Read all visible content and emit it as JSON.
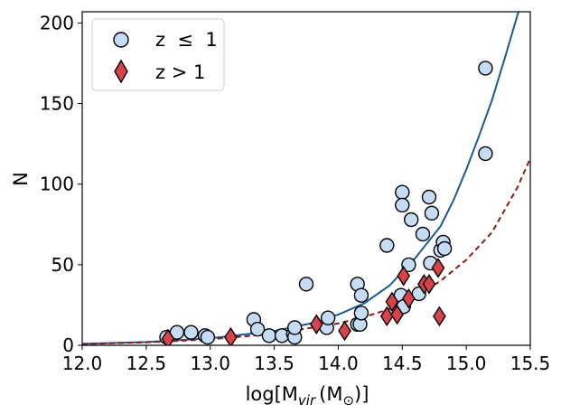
{
  "chart_data": {
    "type": "scatter",
    "xlabel": "log[M",
    "xlabel_sub": "vir",
    "xlabel_unit_open": "(M",
    "xlabel_unit_sub": "⊙",
    "xlabel_close": ")]",
    "ylabel": "N",
    "xlim": [
      12.0,
      15.5
    ],
    "ylim": [
      0,
      207
    ],
    "x_ticks": [
      12.0,
      12.5,
      13.0,
      13.5,
      14.0,
      14.5,
      15.0,
      15.5
    ],
    "x_tick_labels": [
      "12.0",
      "12.5",
      "13.0",
      "13.5",
      "14.0",
      "14.5",
      "15.0",
      "15.5"
    ],
    "y_ticks": [
      0,
      50,
      100,
      150,
      200
    ],
    "y_tick_labels": [
      "0",
      "50",
      "100",
      "150",
      "200"
    ],
    "grid": false,
    "legend_position": "top-left",
    "series": [
      {
        "name": "z ≤ 1",
        "legend_label": "z  ≤  1",
        "marker": "circle",
        "color": "#c6dcf4",
        "edge_color": "#000000",
        "points": [
          [
            12.66,
            5
          ],
          [
            12.74,
            8
          ],
          [
            12.85,
            8
          ],
          [
            12.96,
            6
          ],
          [
            12.98,
            5
          ],
          [
            13.34,
            16
          ],
          [
            13.37,
            10
          ],
          [
            13.46,
            6
          ],
          [
            13.56,
            6
          ],
          [
            13.65,
            7
          ],
          [
            13.66,
            5
          ],
          [
            13.66,
            11
          ],
          [
            13.75,
            38
          ],
          [
            13.91,
            11
          ],
          [
            13.92,
            17
          ],
          [
            14.15,
            38
          ],
          [
            14.15,
            13
          ],
          [
            14.17,
            13
          ],
          [
            14.18,
            20
          ],
          [
            14.18,
            31
          ],
          [
            14.38,
            62
          ],
          [
            14.49,
            31
          ],
          [
            14.5,
            95
          ],
          [
            14.5,
            87
          ],
          [
            14.51,
            24
          ],
          [
            14.55,
            50
          ],
          [
            14.57,
            78
          ],
          [
            14.63,
            32
          ],
          [
            14.66,
            69
          ],
          [
            14.71,
            92
          ],
          [
            14.72,
            51
          ],
          [
            14.73,
            82
          ],
          [
            14.8,
            59
          ],
          [
            14.82,
            64
          ],
          [
            14.83,
            60
          ],
          [
            15.15,
            172
          ],
          [
            15.15,
            119
          ]
        ]
      },
      {
        "name": "z > 1",
        "legend_label": "z > 1",
        "marker": "diamond",
        "color": "#d9414b",
        "edge_color": "#000000",
        "points": [
          [
            12.67,
            4
          ],
          [
            13.16,
            5
          ],
          [
            13.83,
            13
          ],
          [
            14.05,
            9
          ],
          [
            14.38,
            18
          ],
          [
            14.42,
            27
          ],
          [
            14.46,
            19
          ],
          [
            14.51,
            43
          ],
          [
            14.55,
            29
          ],
          [
            14.67,
            38
          ],
          [
            14.71,
            38
          ],
          [
            14.78,
            48
          ],
          [
            14.79,
            18
          ]
        ]
      }
    ],
    "fit_lines": [
      {
        "style": "solid",
        "color": "#1a5a96",
        "points": [
          [
            12.0,
            0.9
          ],
          [
            12.5,
            2.0
          ],
          [
            13.0,
            4.3
          ],
          [
            13.5,
            8.9
          ],
          [
            13.8,
            13.8
          ],
          [
            14.0,
            19.0
          ],
          [
            14.2,
            26.0
          ],
          [
            14.4,
            37.0
          ],
          [
            14.6,
            54.0
          ],
          [
            14.8,
            74.0
          ],
          [
            14.9,
            90.0
          ],
          [
            15.0,
            109.0
          ],
          [
            15.1,
            130.0
          ],
          [
            15.2,
            152.0
          ],
          [
            15.3,
            178.0
          ],
          [
            15.4,
            205.0
          ],
          [
            15.43,
            212.0
          ]
        ]
      },
      {
        "style": "dashed",
        "color": "#8b1a1a",
        "points": [
          [
            12.0,
            0.8
          ],
          [
            12.5,
            1.8
          ],
          [
            13.0,
            3.7
          ],
          [
            13.5,
            7.2
          ],
          [
            14.0,
            13.6
          ],
          [
            14.2,
            17.5
          ],
          [
            14.4,
            22.5
          ],
          [
            14.6,
            30.0
          ],
          [
            14.8,
            40.0
          ],
          [
            15.0,
            53.0
          ],
          [
            15.2,
            70.0
          ],
          [
            15.4,
            98.0
          ],
          [
            15.5,
            116.0
          ]
        ]
      }
    ]
  }
}
